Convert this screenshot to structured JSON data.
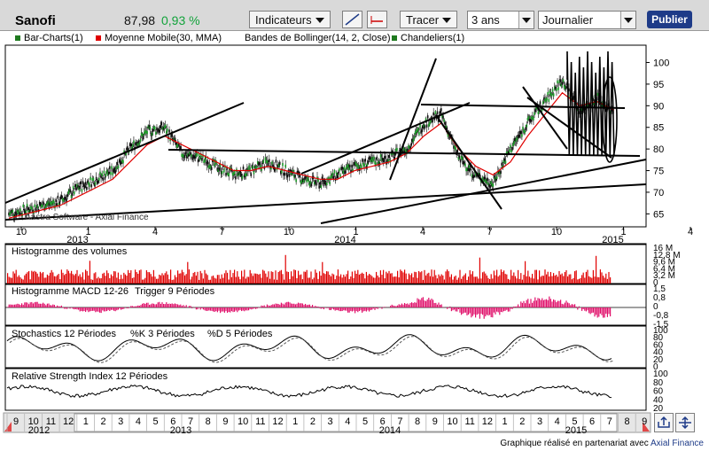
{
  "header": {
    "ticker": "Sanofi",
    "price": "87,98",
    "change": "0,93 %",
    "indicators_label": "Indicateurs",
    "draw_label": "Tracer",
    "period_value": "3 ans",
    "interval_value": "Journalier",
    "publish_label": "Publier"
  },
  "legend": [
    {
      "label": "Bar-Charts(1)",
      "color": "#1f7a1f"
    },
    {
      "label": "Moyenne Mobile(30, MMA)",
      "color": "#e00000"
    },
    {
      "label": "Bandes de Bollinger(14, 2, Close)",
      "color": ""
    },
    {
      "label": "Chandeliers(1)",
      "color": "#1f7a1f"
    }
  ],
  "watermark": "Aastra Software - Axial Finance",
  "footer": {
    "text": "Graphique réalisé en partenariat avec ",
    "company": "Axial Finance"
  },
  "chart_data": [
    {
      "type": "line",
      "title": "",
      "ylim": [
        62,
        104
      ],
      "yticks": [
        "100",
        "95",
        "90",
        "85",
        "80",
        "75",
        "70",
        "65"
      ],
      "x_tick_labels": [
        "10",
        "1",
        "4",
        "7",
        "10",
        "1",
        "4",
        "7",
        "10",
        "1",
        "4",
        "7"
      ],
      "year_labels": [
        "2013",
        "2014",
        "2015"
      ],
      "series": [
        {
          "name": "Bar-Charts(1)",
          "color": "#1f7a1f",
          "x": [
            "2012-09",
            "2012-10",
            "2012-11",
            "2012-12",
            "2013-01",
            "2013-02",
            "2013-03",
            "2013-04",
            "2013-05",
            "2013-06",
            "2013-07",
            "2013-08",
            "2013-09",
            "2013-10",
            "2013-11",
            "2013-12",
            "2014-01",
            "2014-02",
            "2014-03",
            "2014-04",
            "2014-05",
            "2014-06",
            "2014-07",
            "2014-08",
            "2014-09",
            "2014-10",
            "2014-11",
            "2014-12",
            "2015-01",
            "2015-02",
            "2015-03",
            "2015-04",
            "2015-05",
            "2015-06",
            "2015-07",
            "2015-08"
          ],
          "values": [
            65,
            66,
            67,
            68,
            71,
            73,
            75,
            80,
            84,
            85,
            79,
            78,
            76,
            74,
            75,
            77,
            75,
            73,
            72,
            74,
            76,
            77,
            78,
            80,
            86,
            88,
            78,
            74,
            72,
            80,
            86,
            91,
            96,
            89,
            92,
            88
          ]
        },
        {
          "name": "Moyenne Mobile(30, MMA)",
          "color": "#e00000",
          "x": [
            "2012-09",
            "2012-10",
            "2012-11",
            "2012-12",
            "2013-01",
            "2013-02",
            "2013-03",
            "2013-04",
            "2013-05",
            "2013-06",
            "2013-07",
            "2013-08",
            "2013-09",
            "2013-10",
            "2013-11",
            "2013-12",
            "2014-01",
            "2014-02",
            "2014-03",
            "2014-04",
            "2014-05",
            "2014-06",
            "2014-07",
            "2014-08",
            "2014-09",
            "2014-10",
            "2014-11",
            "2014-12",
            "2015-01",
            "2015-02",
            "2015-03",
            "2015-04",
            "2015-05",
            "2015-06",
            "2015-07",
            "2015-08"
          ],
          "values": [
            64,
            65,
            66,
            67,
            69,
            71,
            73,
            77,
            81,
            83,
            81,
            79,
            77,
            75,
            75,
            76,
            75,
            74,
            73,
            73,
            75,
            76,
            77,
            79,
            83,
            86,
            80,
            76,
            74,
            77,
            83,
            88,
            93,
            90,
            91,
            89
          ]
        }
      ]
    },
    {
      "type": "bar",
      "title": "Histogramme des volumes",
      "yticks": [
        "16 M",
        "12,8 M",
        "9,6 M",
        "6,4 M",
        "3,2 M",
        "0"
      ],
      "ylim": [
        0,
        16
      ]
    },
    {
      "type": "area",
      "title": "Histogramme MACD 12-26",
      "subtitle": "Trigger 9 Périodes",
      "yticks": [
        "1,5",
        "0,8",
        "0",
        "-0,8",
        "-1,5"
      ],
      "ylim": [
        -1.5,
        1.5
      ]
    },
    {
      "type": "line",
      "title": "Stochastics 12 Périodes",
      "subtitle": "%K 3 Périodes",
      "subtitle2": "%D 5 Périodes",
      "yticks": [
        "100",
        "80",
        "60",
        "40",
        "20",
        "0"
      ],
      "ylim": [
        0,
        100
      ]
    },
    {
      "type": "line",
      "title": "Relative Strength Index 12 Périodes",
      "yticks": [
        "100",
        "80",
        "60",
        "40",
        "20"
      ],
      "ylim": [
        0,
        100
      ]
    }
  ],
  "navigator": {
    "month_labels": [
      "9",
      "10",
      "11",
      "12",
      "1",
      "2",
      "3",
      "4",
      "5",
      "6",
      "7",
      "8",
      "9",
      "10",
      "11",
      "12",
      "1",
      "2",
      "3",
      "4",
      "5",
      "6",
      "7",
      "8",
      "9",
      "10",
      "11",
      "12",
      "1",
      "2",
      "3",
      "4",
      "5",
      "6",
      "7",
      "8",
      "9"
    ],
    "year_labels": [
      "2012",
      "2013",
      "2014",
      "2015"
    ]
  }
}
